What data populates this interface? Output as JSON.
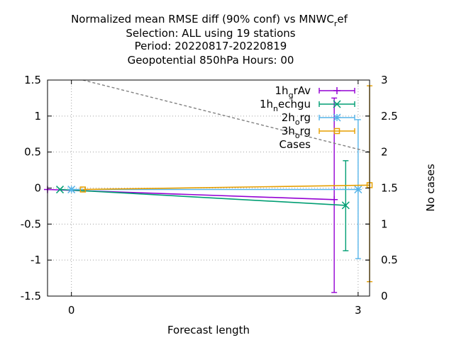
{
  "chart_data": {
    "type": "line",
    "title_lines": [
      "Normalized mean RMSE diff (90% conf) vs MNWC",
      "Selection: ALL using    19 stations",
      "Period: 20220817-20220819",
      "Geopotential 850hPa   Hours:  00"
    ],
    "title_first_suffix": {
      "sub": "r",
      "rest": "ef"
    },
    "xlabel": "Forecast length",
    "ylabel": "",
    "y2label": "No cases",
    "xlim": [
      -0.25,
      3.12
    ],
    "ylim": [
      -1.5,
      1.5
    ],
    "y2lim": [
      0,
      3
    ],
    "xticks": [
      0,
      3
    ],
    "yticks": [
      -1.5,
      -1,
      -0.5,
      0,
      0.5,
      1,
      1.5
    ],
    "y2ticks": [
      0,
      0.5,
      1,
      1.5,
      2,
      2.5,
      3
    ],
    "grid": true,
    "legend_position": "top-right",
    "series": [
      {
        "legend": {
          "base": "1h",
          "sub": "g",
          "rest": "rAv"
        },
        "color": "#9400d3",
        "marker": "plus",
        "x": [
          -0.25,
          2.75
        ],
        "y": [
          -0.02,
          -0.16
        ],
        "errorbar": {
          "x": 2.75,
          "low": -1.45,
          "high": 1.25
        }
      },
      {
        "legend": {
          "base": "1h",
          "sub": "n",
          "rest": "echgu"
        },
        "color": "#009e73",
        "marker": "cross",
        "x": [
          -0.12,
          2.87
        ],
        "y": [
          -0.02,
          -0.24
        ],
        "errorbar": {
          "x": 2.87,
          "low": -0.87,
          "high": 0.38
        }
      },
      {
        "legend": {
          "base": "2h",
          "sub": "o",
          "rest": "rg"
        },
        "color": "#56b4e9",
        "marker": "star",
        "x": [
          0.0,
          3.0
        ],
        "y": [
          -0.02,
          -0.02
        ],
        "errorbar": {
          "x": 3.0,
          "low": -0.98,
          "high": 0.95
        }
      },
      {
        "legend": {
          "base": "3h",
          "sub": "o",
          "rest": "rg"
        },
        "color": "#e69f00",
        "marker": "box",
        "x": [
          0.12,
          3.12
        ],
        "y": [
          -0.02,
          0.04
        ],
        "errorbar": {
          "x": 3.12,
          "low": -1.3,
          "high": 1.42
        }
      },
      {
        "legend": {
          "base": "Cases",
          "sub": "",
          "rest": ""
        },
        "color": "#808080",
        "marker": "none",
        "dashed": true,
        "axis": "y2",
        "x": [
          0.12,
          3.12
        ],
        "y": [
          3.0,
          2.0
        ]
      }
    ]
  }
}
